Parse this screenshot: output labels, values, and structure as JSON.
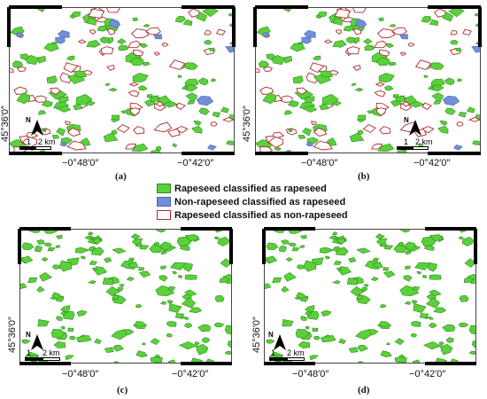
{
  "legend": {
    "items": [
      {
        "label": "Rapeseed classified as rapeseed",
        "fill": "#5ad13a",
        "stroke": "#2e8a1e"
      },
      {
        "label": "Non-rapeseed classified as rapeseed",
        "fill": "#6f8fd6",
        "stroke": "#4a67b0"
      },
      {
        "label": "Rapeseed classified as non-rapeseed",
        "fill": "#ffffff",
        "stroke": "#b02a2a"
      }
    ]
  },
  "panels": [
    {
      "label": "(a)",
      "lon_left": "−0°48′0″",
      "lon_right": "−0°42′0″",
      "lat": "45°36′0″",
      "scale_1": "1",
      "scale_2": "2 km",
      "north": "N"
    },
    {
      "label": "(b)",
      "lon_left": "−0°48′0″",
      "lon_right": "−0°42′0″",
      "lat": "45°36′0″",
      "scale_1": "1",
      "scale_2": "2 km",
      "north": "N"
    },
    {
      "label": "(c)",
      "lon_left": "−0°48′0″",
      "lon_right": "−0°42′0″",
      "lat": "45°36′0″",
      "scale_1": "1",
      "scale_2": "2 km",
      "north": "N"
    },
    {
      "label": "(d)",
      "lon_left": "−0°48′0″",
      "lon_right": "−0°42′0″",
      "lat": "45°36′0″",
      "scale_1": "1",
      "scale_2": "2 km",
      "north": "N"
    }
  ]
}
